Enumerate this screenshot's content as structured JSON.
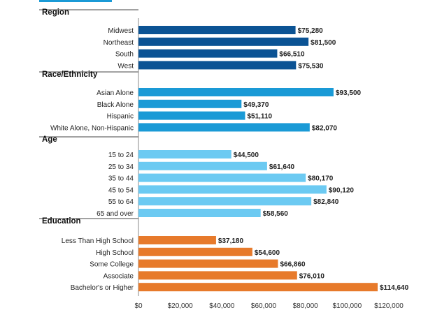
{
  "chart_data": {
    "type": "bar",
    "orientation": "horizontal",
    "xlim": [
      0,
      120000
    ],
    "x_ticks": [
      0,
      20000,
      40000,
      60000,
      80000,
      100000,
      120000
    ],
    "x_tick_labels": [
      "$0",
      "$20,000",
      "$40,000",
      "$60,000",
      "$80,000",
      "$100,000",
      "$120,000"
    ],
    "grid": false,
    "groups": [
      {
        "title": "Region",
        "color": "#0b5394",
        "categories": [
          "Midwest",
          "Northeast",
          "South",
          "West"
        ],
        "values": [
          75280,
          81500,
          66510,
          75530
        ],
        "value_labels": [
          "$75,280",
          "$81,500",
          "$66,510",
          "$75,530"
        ]
      },
      {
        "title": "Race/Ethnicity",
        "color": "#1a9ad6",
        "categories": [
          "Asian Alone",
          "Black Alone",
          "Hispanic",
          "White Alone, Non-Hispanic"
        ],
        "values": [
          93500,
          49370,
          51110,
          82070
        ],
        "value_labels": [
          "$93,500",
          "$49,370",
          "$51,110",
          "$82,070"
        ]
      },
      {
        "title": "Age",
        "color": "#6ccaf2",
        "categories": [
          "15 to 24",
          "25 to 34",
          "35 to 44",
          "45 to 54",
          "55 to 64",
          "65 and over"
        ],
        "values": [
          44500,
          61640,
          80170,
          90120,
          82840,
          58560
        ],
        "value_labels": [
          "$44,500",
          "$61,640",
          "$80,170",
          "$90,120",
          "$82,840",
          "$58,560"
        ]
      },
      {
        "title": "Education",
        "color": "#e77a2b",
        "categories": [
          "Less Than High School",
          "High School",
          "Some College",
          "Associate",
          "Bachelor's or Higher"
        ],
        "values": [
          37180,
          54600,
          66860,
          76010,
          114640
        ],
        "value_labels": [
          "$37,180",
          "$54,600",
          "$66,860",
          "$76,010",
          "$114,640"
        ]
      }
    ]
  },
  "header": {
    "accent_color": "#1a9ad6"
  }
}
